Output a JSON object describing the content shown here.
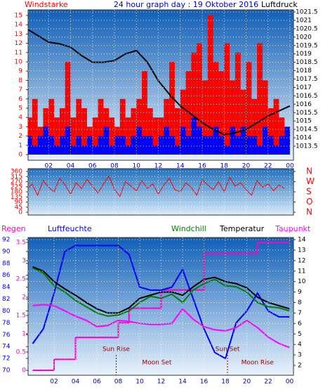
{
  "chart_data": [
    {
      "type": "bar",
      "title": "24 hour graph day : 19 Oktober 2016",
      "xlim": [
        0,
        24
      ],
      "xticks": [
        {
          "value": 2,
          "label": "02"
        },
        {
          "value": 4,
          "label": "04"
        },
        {
          "value": 6,
          "label": "06"
        },
        {
          "value": 8,
          "label": "08"
        },
        10,
        12,
        14,
        16,
        18,
        20,
        22,
        {
          "value": 24,
          "label": "00"
        }
      ],
      "ylim": [
        0,
        15
      ],
      "yticks": [
        0,
        1,
        2,
        3,
        4,
        5,
        6,
        7,
        8,
        9,
        10,
        11,
        12,
        13,
        14,
        15
      ],
      "y2lim": [
        1013.5,
        1021.5
      ],
      "y2ticks": [
        1013.5,
        1014,
        1014.5,
        1015,
        1015.5,
        1016,
        1016.5,
        1017,
        1017.5,
        1018,
        1018.5,
        1019,
        1019.5,
        1020,
        1020.5,
        1021,
        1021.5
      ],
      "grid": true,
      "x": [
        0,
        0.5,
        1,
        1.5,
        2,
        2.5,
        3,
        3.5,
        4,
        4.5,
        5,
        5.5,
        6,
        6.5,
        7,
        7.5,
        8,
        8.5,
        9,
        9.5,
        10,
        10.5,
        11,
        11.5,
        12,
        12.5,
        13,
        13.5,
        14,
        14.5,
        15,
        15.5,
        16,
        16.5,
        17,
        17.5,
        18,
        18.5,
        19,
        19.5,
        20,
        20.5,
        21,
        21.5,
        22,
        22.5,
        23,
        23.5
      ],
      "series": [
        {
          "name": "Windstarke",
          "color": "#ff0000",
          "values": [
            4,
            6,
            3,
            5,
            6,
            4,
            5,
            10,
            4,
            6,
            5,
            3,
            4,
            6,
            5,
            4,
            3,
            6,
            4,
            5,
            6,
            9,
            5,
            4,
            4,
            6,
            10,
            5,
            7,
            9,
            11,
            12,
            8,
            15,
            10,
            9,
            12,
            8,
            11,
            7,
            10,
            6,
            12,
            8,
            5,
            6,
            4,
            3
          ]
        },
        {
          "color": "#0000ff",
          "values": [
            2,
            1,
            2,
            3,
            2,
            1,
            2,
            3,
            1,
            2,
            1,
            2,
            1,
            2,
            3,
            1,
            2,
            2,
            1,
            2,
            3,
            2,
            2,
            1,
            2,
            3,
            2,
            1,
            3,
            2,
            4,
            3,
            2,
            2,
            3,
            2,
            1,
            3,
            2,
            3,
            2,
            2,
            1,
            3,
            2,
            1,
            2,
            3
          ]
        },
        {
          "name": "Luftdruck",
          "color": "#000000",
          "axis": "y2",
          "type": "line",
          "x": [
            0,
            1,
            2,
            3,
            4,
            5,
            6,
            7,
            8,
            9,
            10,
            11,
            12,
            13,
            14,
            15,
            16,
            17,
            18,
            19,
            20,
            21,
            22,
            23,
            24
          ],
          "values": [
            1020.5,
            1020.1,
            1019.7,
            1019.6,
            1019.4,
            1018.9,
            1018.5,
            1018.5,
            1018.6,
            1019.0,
            1019.2,
            1018.5,
            1017.4,
            1016.6,
            1015.9,
            1015.4,
            1014.9,
            1014.5,
            1014.2,
            1014.3,
            1014.5,
            1014.9,
            1015.3,
            1015.6,
            1015.9
          ]
        }
      ]
    },
    {
      "type": "line",
      "xlim": [
        0,
        24
      ],
      "ylim": [
        0,
        360
      ],
      "yticks": [
        0,
        45,
        90,
        135,
        180,
        225,
        270,
        315,
        360
      ],
      "y2ticks": [
        {
          "value": 360,
          "label": "N"
        },
        {
          "value": 270,
          "label": "W"
        },
        {
          "value": 180,
          "label": "S"
        },
        {
          "value": 90,
          "label": "O"
        },
        {
          "value": 0,
          "label": "N"
        }
      ],
      "grid": true,
      "x": [
        0,
        0.5,
        1,
        1.5,
        2,
        2.5,
        3,
        3.5,
        4,
        4.5,
        5,
        5.5,
        6,
        6.5,
        7,
        7.5,
        8,
        8.5,
        9,
        9.5,
        10,
        10.5,
        11,
        11.5,
        12,
        12.5,
        13,
        13.5,
        14,
        14.5,
        15,
        15.5,
        16,
        16.5,
        17,
        17.5,
        18,
        18.5,
        19,
        19.5,
        20,
        20.5,
        21,
        21.5,
        22,
        22.5,
        23,
        23.5
      ],
      "series": [
        {
          "color": "#ff0000",
          "values": [
            200,
            250,
            150,
            280,
            220,
            180,
            300,
            240,
            160,
            260,
            210,
            290,
            230,
            170,
            250,
            320,
            200,
            140,
            270,
            230,
            190,
            280,
            210,
            250,
            160,
            240,
            300,
            200,
            180,
            260,
            220,
            150,
            290,
            240,
            200,
            270,
            180,
            310,
            230,
            260,
            200,
            150,
            280,
            220,
            250,
            190,
            240,
            210
          ]
        }
      ]
    },
    {
      "type": "line",
      "xlim": [
        0,
        24
      ],
      "xticks": [
        {
          "value": 2,
          "label": "02"
        },
        {
          "value": 4,
          "label": "04"
        },
        {
          "value": 6,
          "label": "06"
        },
        {
          "value": 8,
          "label": "08"
        },
        10,
        12,
        14,
        16,
        18,
        20,
        22,
        {
          "value": 24,
          "label": "00"
        }
      ],
      "ylim": [
        0,
        3.5
      ],
      "yticks": [
        0,
        0.5,
        1,
        1.5,
        2,
        2.5,
        3,
        3.5
      ],
      "y2lim": [
        2,
        14
      ],
      "y2ticks": [
        2,
        3,
        4,
        5,
        6,
        7,
        8,
        9,
        10,
        11,
        12,
        13,
        14
      ],
      "y3lim": [
        70,
        92
      ],
      "y3ticks": [
        70,
        72,
        74,
        76,
        78,
        80,
        82,
        84,
        86,
        88,
        90,
        92
      ],
      "grid": true,
      "x": [
        0,
        1,
        2,
        3,
        4,
        5,
        6,
        7,
        8,
        9,
        10,
        11,
        12,
        13,
        14,
        15,
        16,
        17,
        18,
        19,
        20,
        21,
        22,
        23,
        24
      ],
      "series": [
        {
          "name": "Regen",
          "color": "#ff00cc",
          "axis": "y",
          "step": true,
          "values": [
            0,
            0,
            0.3,
            0.3,
            0.9,
            0.9,
            0.9,
            0.9,
            1.3,
            1.7,
            1.7,
            1.7,
            2.2,
            2.2,
            2.2,
            2.2,
            3.2,
            3.2,
            3.2,
            3.2,
            3.2,
            3.5,
            3.5,
            3.5,
            3.5
          ]
        },
        {
          "name": "Luftfeuchte",
          "color": "#0000ff",
          "axis": "y3",
          "values": [
            74.5,
            77,
            83,
            90,
            91,
            91,
            91,
            91,
            91,
            89.5,
            84,
            83.5,
            83.5,
            84,
            87,
            82,
            77,
            73,
            72,
            78,
            80,
            83,
            80,
            79,
            79
          ]
        },
        {
          "name": "Windchill",
          "color": "#008000",
          "axis": "y2",
          "values": [
            11.3,
            10.8,
            9.6,
            9.0,
            8.2,
            7.6,
            7.0,
            6.7,
            6.8,
            7.2,
            8.0,
            8.6,
            8.4,
            8.8,
            8.0,
            9.2,
            9.8,
            10.2,
            9.6,
            9.5,
            9.0,
            8.0,
            7.6,
            7.5,
            7.2
          ]
        },
        {
          "name": "Temperatur",
          "color": "#000000",
          "axis": "y2",
          "values": [
            11.4,
            11.0,
            10.0,
            9.3,
            8.7,
            8.0,
            7.4,
            7.0,
            7.0,
            7.5,
            8.4,
            8.7,
            9.0,
            9.0,
            8.7,
            9.5,
            10.2,
            10.4,
            10.0,
            9.8,
            9.4,
            8.5,
            8.0,
            7.7,
            7.4
          ]
        },
        {
          "name": "Taupunkt",
          "color": "#ff00ff",
          "axis": "y2",
          "values": [
            7.7,
            7.8,
            7.7,
            7.2,
            6.7,
            6.3,
            5.7,
            5.8,
            6.3,
            6.2,
            6.0,
            5.9,
            5.9,
            6.0,
            7.4,
            6.4,
            5.7,
            5.4,
            5.3,
            5.6,
            6.3,
            5.6,
            4.7,
            4.1,
            3.7
          ]
        }
      ],
      "annotations": [
        {
          "text": "Sun Rise",
          "x": 7.8,
          "line": true
        },
        {
          "text": "Moon Set",
          "x": 11.6,
          "line": false
        },
        {
          "text": "Sun Set",
          "x": 18.2,
          "line": true
        },
        {
          "text": "Moon Rise",
          "x": 21.0,
          "line": false
        }
      ]
    }
  ]
}
